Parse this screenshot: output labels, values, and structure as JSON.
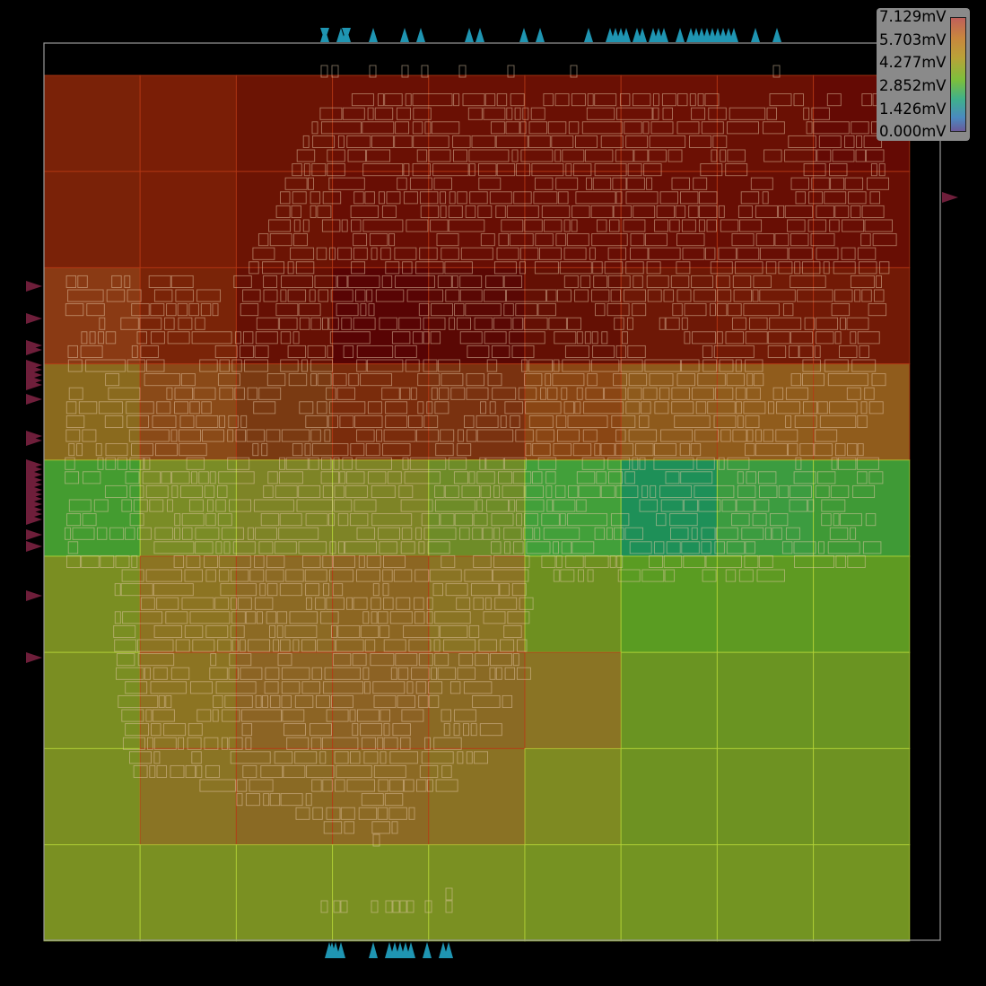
{
  "legend": {
    "labels": [
      "7.129mV",
      "5.703mV",
      "4.277mV",
      "2.852mV",
      "1.426mV",
      "0.000mV"
    ],
    "max_mV": 7.129,
    "min_mV": 0.0
  },
  "heatmap": {
    "rows": 9,
    "cols": 9,
    "colors": [
      [
        "#7a2208",
        "#7a1e06",
        "#6c1404",
        "#6a1004",
        "#6a1004",
        "#6a1004",
        "#6c1004",
        "#6a1004",
        "#640a04"
      ],
      [
        "#7a2208",
        "#7a1e06",
        "#6c1404",
        "#680e04",
        "#680e04",
        "#680e04",
        "#680e04",
        "#680e04",
        "#680e04"
      ],
      [
        "#8a3a14",
        "#7a2408",
        "#661004",
        "#580404",
        "#5a0804",
        "#641004",
        "#6e1806",
        "#721a06",
        "#721a06"
      ],
      [
        "#8a6a1e",
        "#8a4a18",
        "#7a3a12",
        "#7a2c0c",
        "#7a3210",
        "#8a4614",
        "#8e5a1c",
        "#905c1c",
        "#905c1c"
      ],
      [
        "#449c30",
        "#7a8c26",
        "#7e8426",
        "#7e8426",
        "#6e8c28",
        "#42a03a",
        "#1e9058",
        "#3c9c40",
        "#3f9a36"
      ],
      [
        "#7a8e22",
        "#8c7422",
        "#8c6a24",
        "#8c6622",
        "#8a7424",
        "#6e9020",
        "#5a9c22",
        "#5e9a22",
        "#5e9a22"
      ],
      [
        "#7a8e22",
        "#8c7422",
        "#8c6424",
        "#8c6224",
        "#8a6a24",
        "#8a7424",
        "#6a9422",
        "#6a9422",
        "#6a9422"
      ],
      [
        "#7a8e22",
        "#8a7424",
        "#8a6a24",
        "#8c6a24",
        "#8a7224",
        "#7e8a22",
        "#6e9222",
        "#6e9222",
        "#6e9222"
      ],
      [
        "#7a9022",
        "#7a9022",
        "#7a9022",
        "#7a9022",
        "#7a9022",
        "#769222",
        "#739422",
        "#739422",
        "#739422"
      ]
    ]
  },
  "pins": {
    "top_count": 34,
    "bottom_count": 13,
    "left_count": 28,
    "right_count": 1,
    "top_color": "#1f95b2",
    "left_color": "#6e1e3a"
  }
}
